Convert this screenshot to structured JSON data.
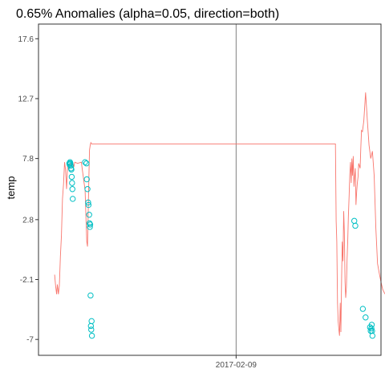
{
  "chart_data": {
    "type": "line",
    "title": "0.65% Anomalies (alpha=0.05, direction=both)",
    "xlabel": "",
    "ylabel": "temp",
    "x_tick_labels": [
      "2017-02-09"
    ],
    "y_ticks": [
      -7,
      -2.1,
      2.8,
      7.8,
      12.7,
      17.6
    ],
    "ylim": [
      -8.3,
      18.8
    ],
    "xlim": [
      0,
      100
    ],
    "grid": false,
    "legend": "none",
    "colors": {
      "line": "#F8766D",
      "anomaly": "#00BFC4",
      "vline": "#808080"
    },
    "vline_x": 57.7,
    "series": [
      {
        "type": "line",
        "x": [
          4.7,
          5.0,
          5.3,
          5.5,
          5.8,
          6.1,
          6.4,
          6.7,
          7.0,
          7.3,
          7.6,
          7.9,
          8.2,
          8.5,
          8.8,
          9.1,
          9.4,
          9.7,
          10.0,
          10.3,
          10.6,
          11.4,
          12.5,
          13.6,
          13.9,
          14.1,
          14.3,
          14.5,
          14.7,
          14.9,
          15.1,
          15.3,
          15.5,
          15.7,
          86.7,
          86.9,
          87.1,
          87.3,
          87.5,
          87.7,
          87.9,
          88.1,
          88.3,
          88.5,
          88.7,
          88.9,
          89.1,
          89.3,
          89.5,
          89.7,
          89.9,
          90.1,
          90.3,
          90.5,
          90.7,
          90.9,
          91.1,
          91.3,
          91.5,
          91.7,
          91.9,
          92.1,
          92.3,
          92.5,
          92.7,
          92.9,
          93.1,
          93.3,
          93.5,
          93.7,
          93.9,
          94.1,
          94.3,
          94.6,
          95.0,
          95.5,
          96.0,
          96.5,
          97.0,
          97.5,
          98.0,
          98.5,
          99.0,
          99.5,
          100.0,
          100.5,
          101.0,
          101.5
        ],
        "y": [
          -1.7,
          -2.6,
          -3.3,
          -2.5,
          -3.3,
          -2.6,
          -0.2,
          1.5,
          4.5,
          5.7,
          7.5,
          6.9,
          5.3,
          7.3,
          7.2,
          7.3,
          7.4,
          7.2,
          7.5,
          7.1,
          7.5,
          7.4,
          7.5,
          5.2,
          2.5,
          1.0,
          0.6,
          3.2,
          6.2,
          8.5,
          8.9,
          9.1,
          9.0,
          9.0,
          9.0,
          2.7,
          1.0,
          -4.0,
          -5.5,
          -6.2,
          -6.7,
          -4.0,
          -6.4,
          -2.1,
          1.0,
          -0.6,
          3.5,
          1.8,
          -2.3,
          -3.6,
          -2.7,
          -0.5,
          1.2,
          3.2,
          4.8,
          6.5,
          7.5,
          5.8,
          7.8,
          6.4,
          8.0,
          5.5,
          6.3,
          7.0,
          4.0,
          5.1,
          5.8,
          6.3,
          7.4,
          7.2,
          7.0,
          8.6,
          10.1,
          10.0,
          10.9,
          13.2,
          11.0,
          8.9,
          7.8,
          8.4,
          6.4,
          2.1,
          -0.8,
          -1.6,
          -2.3,
          -2.9,
          -3.2,
          -3.4
        ]
      },
      {
        "type": "scatter",
        "name": "anomalies",
        "x": [
          9.0,
          9.1,
          9.2,
          9.3,
          9.4,
          9.5,
          9.6,
          9.7,
          9.8,
          9.9,
          10.0,
          13.6,
          14.0,
          14.1,
          14.3,
          14.5,
          14.6,
          14.8,
          14.9,
          15.0,
          15.1,
          15.2,
          15.3,
          15.4,
          15.5,
          15.6,
          92.2,
          92.5,
          94.7,
          95.5,
          96.8,
          97.0,
          97.2,
          97.3,
          97.4,
          97.5
        ],
        "y": [
          7.4,
          7.3,
          7.5,
          7.4,
          7.2,
          7.0,
          6.9,
          6.3,
          5.8,
          5.3,
          4.5,
          7.5,
          7.4,
          6.1,
          5.3,
          4.2,
          4.0,
          3.2,
          2.5,
          2.2,
          2.4,
          -3.4,
          -5.9,
          -6.2,
          -5.5,
          -6.7,
          2.7,
          2.3,
          -4.5,
          -5.2,
          -6.0,
          -6.3,
          -6.1,
          -5.8,
          -6.3,
          -6.7
        ]
      }
    ]
  }
}
